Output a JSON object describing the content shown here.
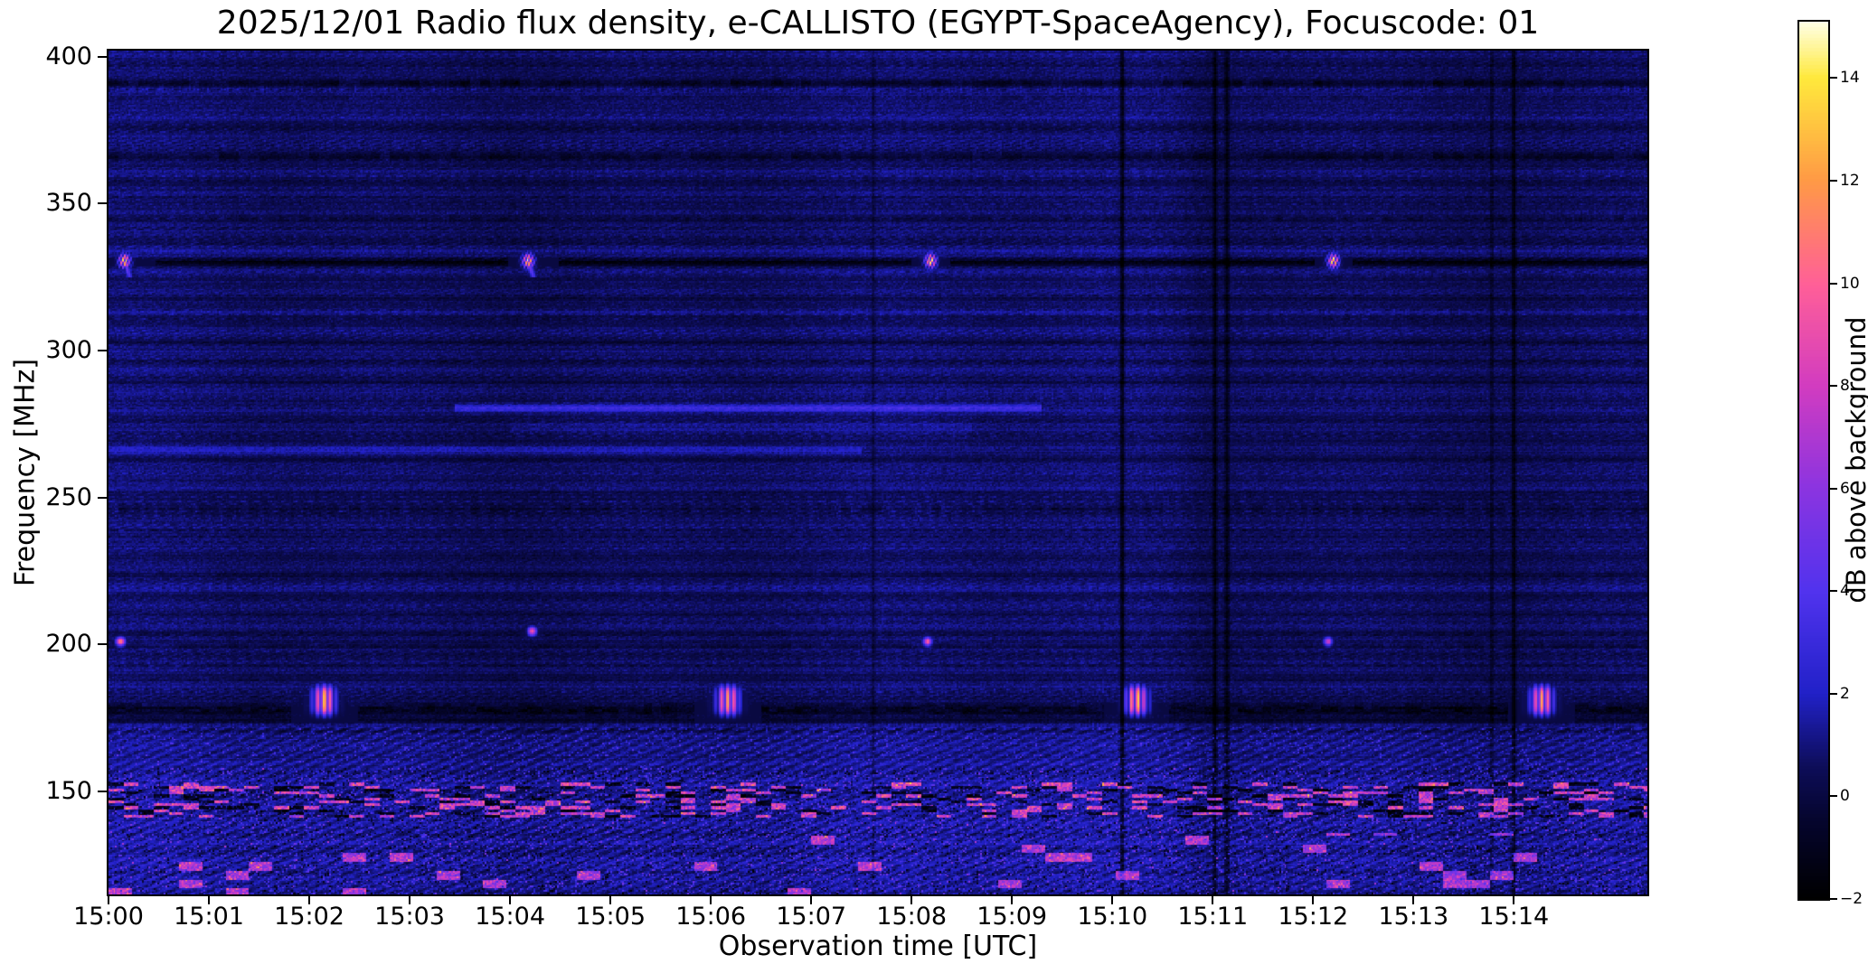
{
  "chart_data": {
    "type": "heatmap",
    "title": "2025/12/01  Radio flux density, e-CALLISTO (EGYPT-SpaceAgency), Focuscode: 01",
    "xlabel": "Observation time [UTC]",
    "ylabel": "Frequency [MHz]",
    "colorbar_label": "dB above background",
    "x_tick_labels": [
      "15:00",
      "15:01",
      "15:02",
      "15:03",
      "15:04",
      "15:05",
      "15:06",
      "15:07",
      "15:08",
      "15:09",
      "15:10",
      "15:11",
      "15:12",
      "15:13",
      "15:14"
    ],
    "x_axis_duration_min": 15.33,
    "y_tick_values": [
      400,
      350,
      300,
      250,
      200,
      150
    ],
    "freq_range_mhz": [
      115,
      402
    ],
    "colorbar_tick_values": [
      14,
      12,
      10,
      8,
      6,
      4,
      2,
      0,
      -2
    ],
    "value_range_db": [
      -2,
      15.1
    ],
    "grid": false,
    "legend": "colorbar-right",
    "colormap_stops": [
      [
        0.0,
        "#000000"
      ],
      [
        0.09,
        "#05052e"
      ],
      [
        0.15,
        "#0d0d58"
      ],
      [
        0.234,
        "#2121c8"
      ],
      [
        0.35,
        "#5133ee"
      ],
      [
        0.47,
        "#8c34e0"
      ],
      [
        0.585,
        "#d23cc0"
      ],
      [
        0.7,
        "#ff5f98"
      ],
      [
        0.82,
        "#ff9a45"
      ],
      [
        0.936,
        "#ffe93c"
      ],
      [
        1.0,
        "#ffffe6"
      ]
    ],
    "features": {
      "calibration_bursts_330mhz": {
        "freq": 330.5,
        "freq_halfwidth": 2.4,
        "times_min": [
          0.16,
          4.18,
          8.19,
          12.2
        ],
        "duration_halfwidth_min": 0.055,
        "peak_db": 16,
        "tails": [
          true,
          true,
          false,
          false
        ]
      },
      "calibration_bursts_180mhz": {
        "freq": 181,
        "freq_halfwidth": 5.0,
        "times_min": [
          2.15,
          6.17,
          10.24,
          14.28
        ],
        "duration_halfwidth_min": 0.11,
        "peak_db": 13.5
      },
      "spots_200mhz": [
        {
          "t": 0.12,
          "f": 201,
          "peak": 11
        },
        {
          "t": 4.22,
          "f": 204.5,
          "peak": 9.5
        },
        {
          "t": 8.16,
          "f": 201,
          "peak": 10
        },
        {
          "t": 12.15,
          "f": 201,
          "peak": 8
        }
      ],
      "emission_lines": [
        {
          "f": 280.5,
          "w": 1.2,
          "a": 2.4,
          "t0": 3.45,
          "t1": 9.3
        },
        {
          "f": 266,
          "w": 1.4,
          "a": 1.1,
          "t0": 0,
          "t1": 7.5
        },
        {
          "f": 274,
          "w": 3.5,
          "a": 0.5,
          "t0": 4.0,
          "t1": 8.6
        }
      ],
      "solid_dark_lines": [
        {
          "f": 330,
          "w": 1.1,
          "d": 2.2
        },
        {
          "f": 174,
          "w": 0.9,
          "d": 1.2
        }
      ],
      "dark_band_178": {
        "f": 177.8,
        "w": 2.4,
        "d": 1.9
      },
      "dark_rows": [
        {
          "f": 391,
          "w": 1.2,
          "d": 1.8
        },
        {
          "f": 386,
          "w": 0.8,
          "d": 0.7
        },
        {
          "f": 375,
          "w": 0.9,
          "d": 0.8
        },
        {
          "f": 366,
          "w": 1.4,
          "d": 1.5
        },
        {
          "f": 358,
          "w": 0.8,
          "d": 0.6
        },
        {
          "f": 352,
          "w": 0.8,
          "d": 0.7
        },
        {
          "f": 345,
          "w": 1.0,
          "d": 0.9
        },
        {
          "f": 337,
          "w": 0.8,
          "d": 0.6
        },
        {
          "f": 325,
          "w": 0.9,
          "d": 0.5
        },
        {
          "f": 318,
          "w": 0.8,
          "d": 0.5
        },
        {
          "f": 311,
          "w": 0.8,
          "d": 0.6
        },
        {
          "f": 303,
          "w": 0.9,
          "d": 0.7
        },
        {
          "f": 296,
          "w": 0.8,
          "d": 0.6
        },
        {
          "f": 289,
          "w": 0.8,
          "d": 0.5
        },
        {
          "f": 271,
          "w": 0.8,
          "d": 0.5
        },
        {
          "f": 263,
          "w": 0.8,
          "d": 0.5
        },
        {
          "f": 252,
          "w": 0.8,
          "d": 0.5
        },
        {
          "f": 246,
          "w": 1.3,
          "d": 1.2
        },
        {
          "f": 239,
          "w": 0.8,
          "d": 0.6
        },
        {
          "f": 231,
          "w": 0.8,
          "d": 0.5
        },
        {
          "f": 224,
          "w": 0.9,
          "d": 0.7
        },
        {
          "f": 217,
          "w": 0.8,
          "d": 0.5
        },
        {
          "f": 210,
          "w": 0.8,
          "d": 0.5
        },
        {
          "f": 204,
          "w": 0.8,
          "d": 0.6
        },
        {
          "f": 199.5,
          "w": 1.0,
          "d": 1.0
        },
        {
          "f": 193,
          "w": 0.8,
          "d": 0.7
        },
        {
          "f": 188,
          "w": 0.9,
          "d": 0.7
        },
        {
          "f": 171,
          "w": 0.9,
          "d": 0.9
        }
      ],
      "bright_rows": [
        {
          "f": 389,
          "w": 1.0,
          "a": 1.0
        },
        {
          "f": 379,
          "w": 0.8,
          "a": 0.5
        },
        {
          "f": 370,
          "w": 0.9,
          "a": 0.7
        },
        {
          "f": 361,
          "w": 0.8,
          "a": 0.5
        },
        {
          "f": 347,
          "w": 0.8,
          "a": 0.4
        },
        {
          "f": 334,
          "w": 0.8,
          "a": 0.5
        },
        {
          "f": 313,
          "w": 0.8,
          "a": 0.4
        },
        {
          "f": 284,
          "w": 2.5,
          "a": 0.35
        },
        {
          "f": 259,
          "w": 0.9,
          "a": 0.4
        },
        {
          "f": 243,
          "w": 0.9,
          "a": 0.5
        },
        {
          "f": 219,
          "w": 1.0,
          "a": 0.45
        },
        {
          "f": 202,
          "w": 0.7,
          "a": 0.5
        },
        {
          "f": 184,
          "w": 1.2,
          "a": 0.6
        },
        {
          "f": 173,
          "w": 0.9,
          "a": 0.8
        }
      ],
      "vertical_dark_lines": [
        {
          "t": 7.62,
          "w": 0.02,
          "d": 0.9
        },
        {
          "t": 10.1,
          "w": 0.018,
          "d": 2.4
        },
        {
          "t": 11.02,
          "w": 0.018,
          "d": 2.0
        },
        {
          "t": 11.14,
          "w": 0.022,
          "d": 1.7
        },
        {
          "t": 13.78,
          "w": 0.014,
          "d": 1.2
        },
        {
          "t": 14.0,
          "w": 0.018,
          "d": 2.0
        }
      ],
      "noise_region_top_mhz": 172,
      "strong_noise_top_mhz": 158,
      "speckle_band_mhz": [
        141,
        153
      ]
    }
  }
}
